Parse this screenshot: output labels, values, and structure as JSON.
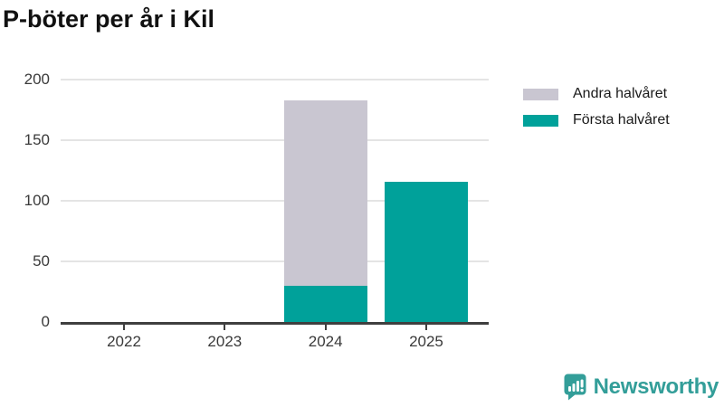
{
  "title": "P-böter per år i Kil",
  "chart_data": {
    "type": "bar",
    "stacked": true,
    "title": "P-böter per år i Kil",
    "categories": [
      "2022",
      "2023",
      "2024",
      "2025"
    ],
    "series": [
      {
        "name": "Andra halvåret",
        "color": "#C9C6D1",
        "values": [
          0,
          0,
          153,
          0
        ]
      },
      {
        "name": "Första halvåret",
        "color": "#00A19A",
        "values": [
          0,
          0,
          30,
          116
        ]
      }
    ],
    "stack_totals": [
      0,
      0,
      183,
      116
    ],
    "xlabel": "",
    "ylabel": "",
    "ylim": [
      0,
      200
    ],
    "yticks": [
      0,
      50,
      100,
      150,
      200
    ],
    "grid": true,
    "legend_position": "top-right"
  },
  "legend": {
    "items": [
      {
        "label": "Andra halvåret",
        "color": "#C9C6D1"
      },
      {
        "label": "Första halvåret",
        "color": "#00A19A"
      }
    ]
  },
  "branding": {
    "logo_text": "Newsworthy",
    "logo_color": "#339E99",
    "logo_icon": "bar-chart-speech-bubble-icon"
  },
  "colors": {
    "teal": "#00A19A",
    "gray": "#C9C6D1",
    "axis": "#3F3F3F",
    "gridline": "#E4E4E4",
    "tick_text": "#3A3A3A",
    "title_text": "#111111",
    "background": "#FFFFFF"
  }
}
